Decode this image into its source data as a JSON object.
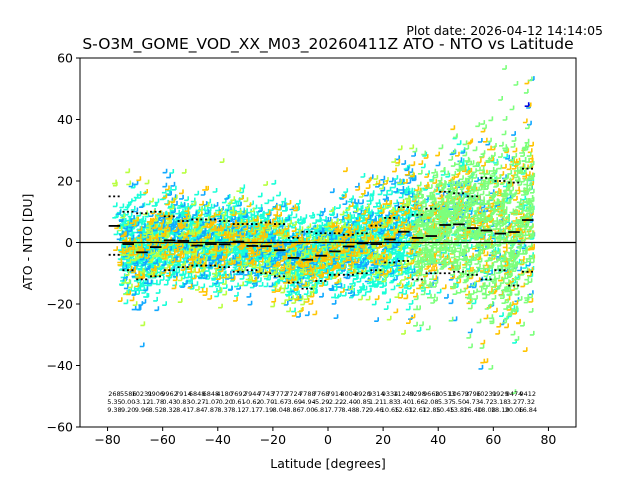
{
  "chart_data": {
    "type": "scatter",
    "plot_date": "Plot date: 2026-04-12 14:14:05",
    "title": "S-O3M_GOME_VOD_XX_M03_20260411Z ATO - NTO vs Latitude",
    "xlabel": "Latitude [degrees]",
    "ylabel": "ATO - NTO [DU]",
    "xlim": [
      -90,
      90
    ],
    "ylim": [
      -60,
      60
    ],
    "x_ticks": [
      -80,
      -60,
      -40,
      -20,
      0,
      20,
      40,
      60,
      80
    ],
    "y_ticks": [
      -60,
      -40,
      -20,
      0,
      20,
      40,
      60
    ],
    "x_tick_labels": [
      "−80",
      "−60",
      "−40",
      "−20",
      "0",
      "20",
      "40",
      "60",
      "80"
    ],
    "y_tick_labels": [
      "−60",
      "−40",
      "−20",
      "0",
      "20",
      "40",
      "60"
    ],
    "zero_line": 0,
    "colors": {
      "aqua": "#18FFD8",
      "sky": "#10A8FF",
      "green": "#7CFF7C",
      "yellow": "#FFC400",
      "lime": "#B8FF40",
      "blue": "#0000E0",
      "median": "#000000"
    },
    "bins": {
      "lat_start": -77.5,
      "lat_step": 5,
      "median": [
        5.4,
        -0.5,
        -3.2,
        -1.5,
        0.7,
        0.5,
        -1.0,
        -0.5,
        -0.6,
        0.3,
        -1.1,
        -1.2,
        -2.5,
        -5.0,
        -5.6,
        -4.3,
        -2.9,
        -1.3,
        -0.3,
        -0.5,
        1.0,
        3.5,
        1.5,
        2.1,
        5.7,
        5.9,
        4.7,
        3.9,
        2.9,
        3.4,
        7.3
      ],
      "upper": [
        15.0,
        10.0,
        9.5,
        10.0,
        8.5,
        7.0,
        7.5,
        7.5,
        7.0,
        6.0,
        6.0,
        6.5,
        6.0,
        1.5,
        3.5,
        3.0,
        3.0,
        2.5,
        3.0,
        5.5,
        8.0,
        11.5,
        9.0,
        11.0,
        16.5,
        16.0,
        15.0,
        21.0,
        20.0,
        19.5,
        24.0
      ],
      "lower": [
        -4.0,
        -9.0,
        -12.0,
        -11.0,
        -9.0,
        -8.0,
        -7.5,
        -7.5,
        -8.0,
        -9.5,
        -9.0,
        -10.0,
        -11.0,
        -13.0,
        -15.0,
        -12.5,
        -10.5,
        -10.5,
        -10.0,
        -9.0,
        -6.5,
        -6.0,
        -12.0,
        -10.0,
        -10.0,
        -9.5,
        -10.5,
        -12.0,
        -9.0,
        -14.0,
        -9.5
      ],
      "counts": [
        "268",
        "5586",
        "10231",
        "9906",
        "9962",
        "7914",
        "6848",
        "6848",
        "4180",
        "7692",
        "7944",
        "7743",
        "7772",
        "7724",
        "7788",
        "7768",
        "7914",
        "8004",
        "8920",
        "9314",
        "9334",
        "11249",
        "8298",
        "9668",
        "10513",
        "10673",
        "9796",
        "10231",
        "9929",
        "9474",
        "9412"
      ],
      "means": [
        "5.35",
        "0.00",
        "-3.12",
        "-1.78",
        "0.43",
        "0.83",
        "-0.27",
        "-1.07",
        "-0.20",
        "0.61",
        "-0.62",
        "-0.70",
        "-1.67",
        "-3.69",
        "-4.94",
        "-5.29",
        "-2.22",
        "-2.40",
        "-0.85",
        "1.21",
        "1.83",
        "3.40",
        "1.66",
        "2.08",
        "5.37",
        "5.50",
        "4.73",
        "4.72",
        "3.18",
        "3.27",
        "7.32"
      ],
      "stds": [
        "9.38",
        "9.20",
        "9.96",
        "8.52",
        "8.32",
        "8.41",
        "7.84",
        "7.87",
        "8.37",
        "8.12",
        "7.17",
        "7.19",
        "8.04",
        "8.86",
        "7.00",
        "6.81",
        "7.77",
        "8.48",
        "8.72",
        "9.46",
        "10.65",
        "12.61",
        "12.61",
        "12.85",
        "10.45",
        "13.82",
        "16.40",
        "18.08",
        "18.19",
        "20.06",
        "16.84"
      ]
    }
  }
}
